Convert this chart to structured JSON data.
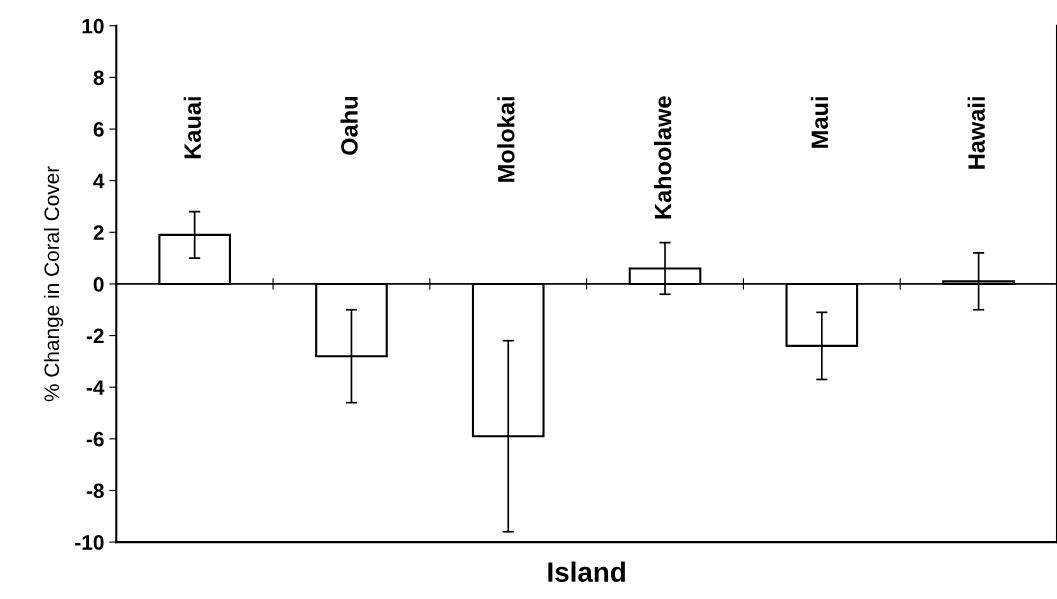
{
  "chart_data": {
    "type": "bar",
    "xlabel": "Island",
    "ylabel": "% Change in Coral Cover",
    "categories": [
      "Kauai",
      "Oahu",
      "Molokai",
      "Kahoolawe",
      "Maui",
      "Hawaii"
    ],
    "series": [
      {
        "color": "#ffffff",
        "values": [
          1.9,
          -2.8,
          -5.9,
          0.6,
          -2.4,
          0.1
        ],
        "errors": [
          0.9,
          1.8,
          3.7,
          1.0,
          1.3,
          1.1
        ]
      }
    ],
    "ylim": [
      -10,
      10
    ],
    "yticks": [
      {
        "value": -10,
        "label": "-10"
      },
      {
        "value": -8,
        "label": "-8"
      },
      {
        "value": -6,
        "label": "-6"
      },
      {
        "value": -4,
        "label": "-4"
      },
      {
        "value": -2,
        "label": "-2"
      },
      0,
      2,
      4,
      6,
      8,
      10
    ],
    "grid": false
  }
}
